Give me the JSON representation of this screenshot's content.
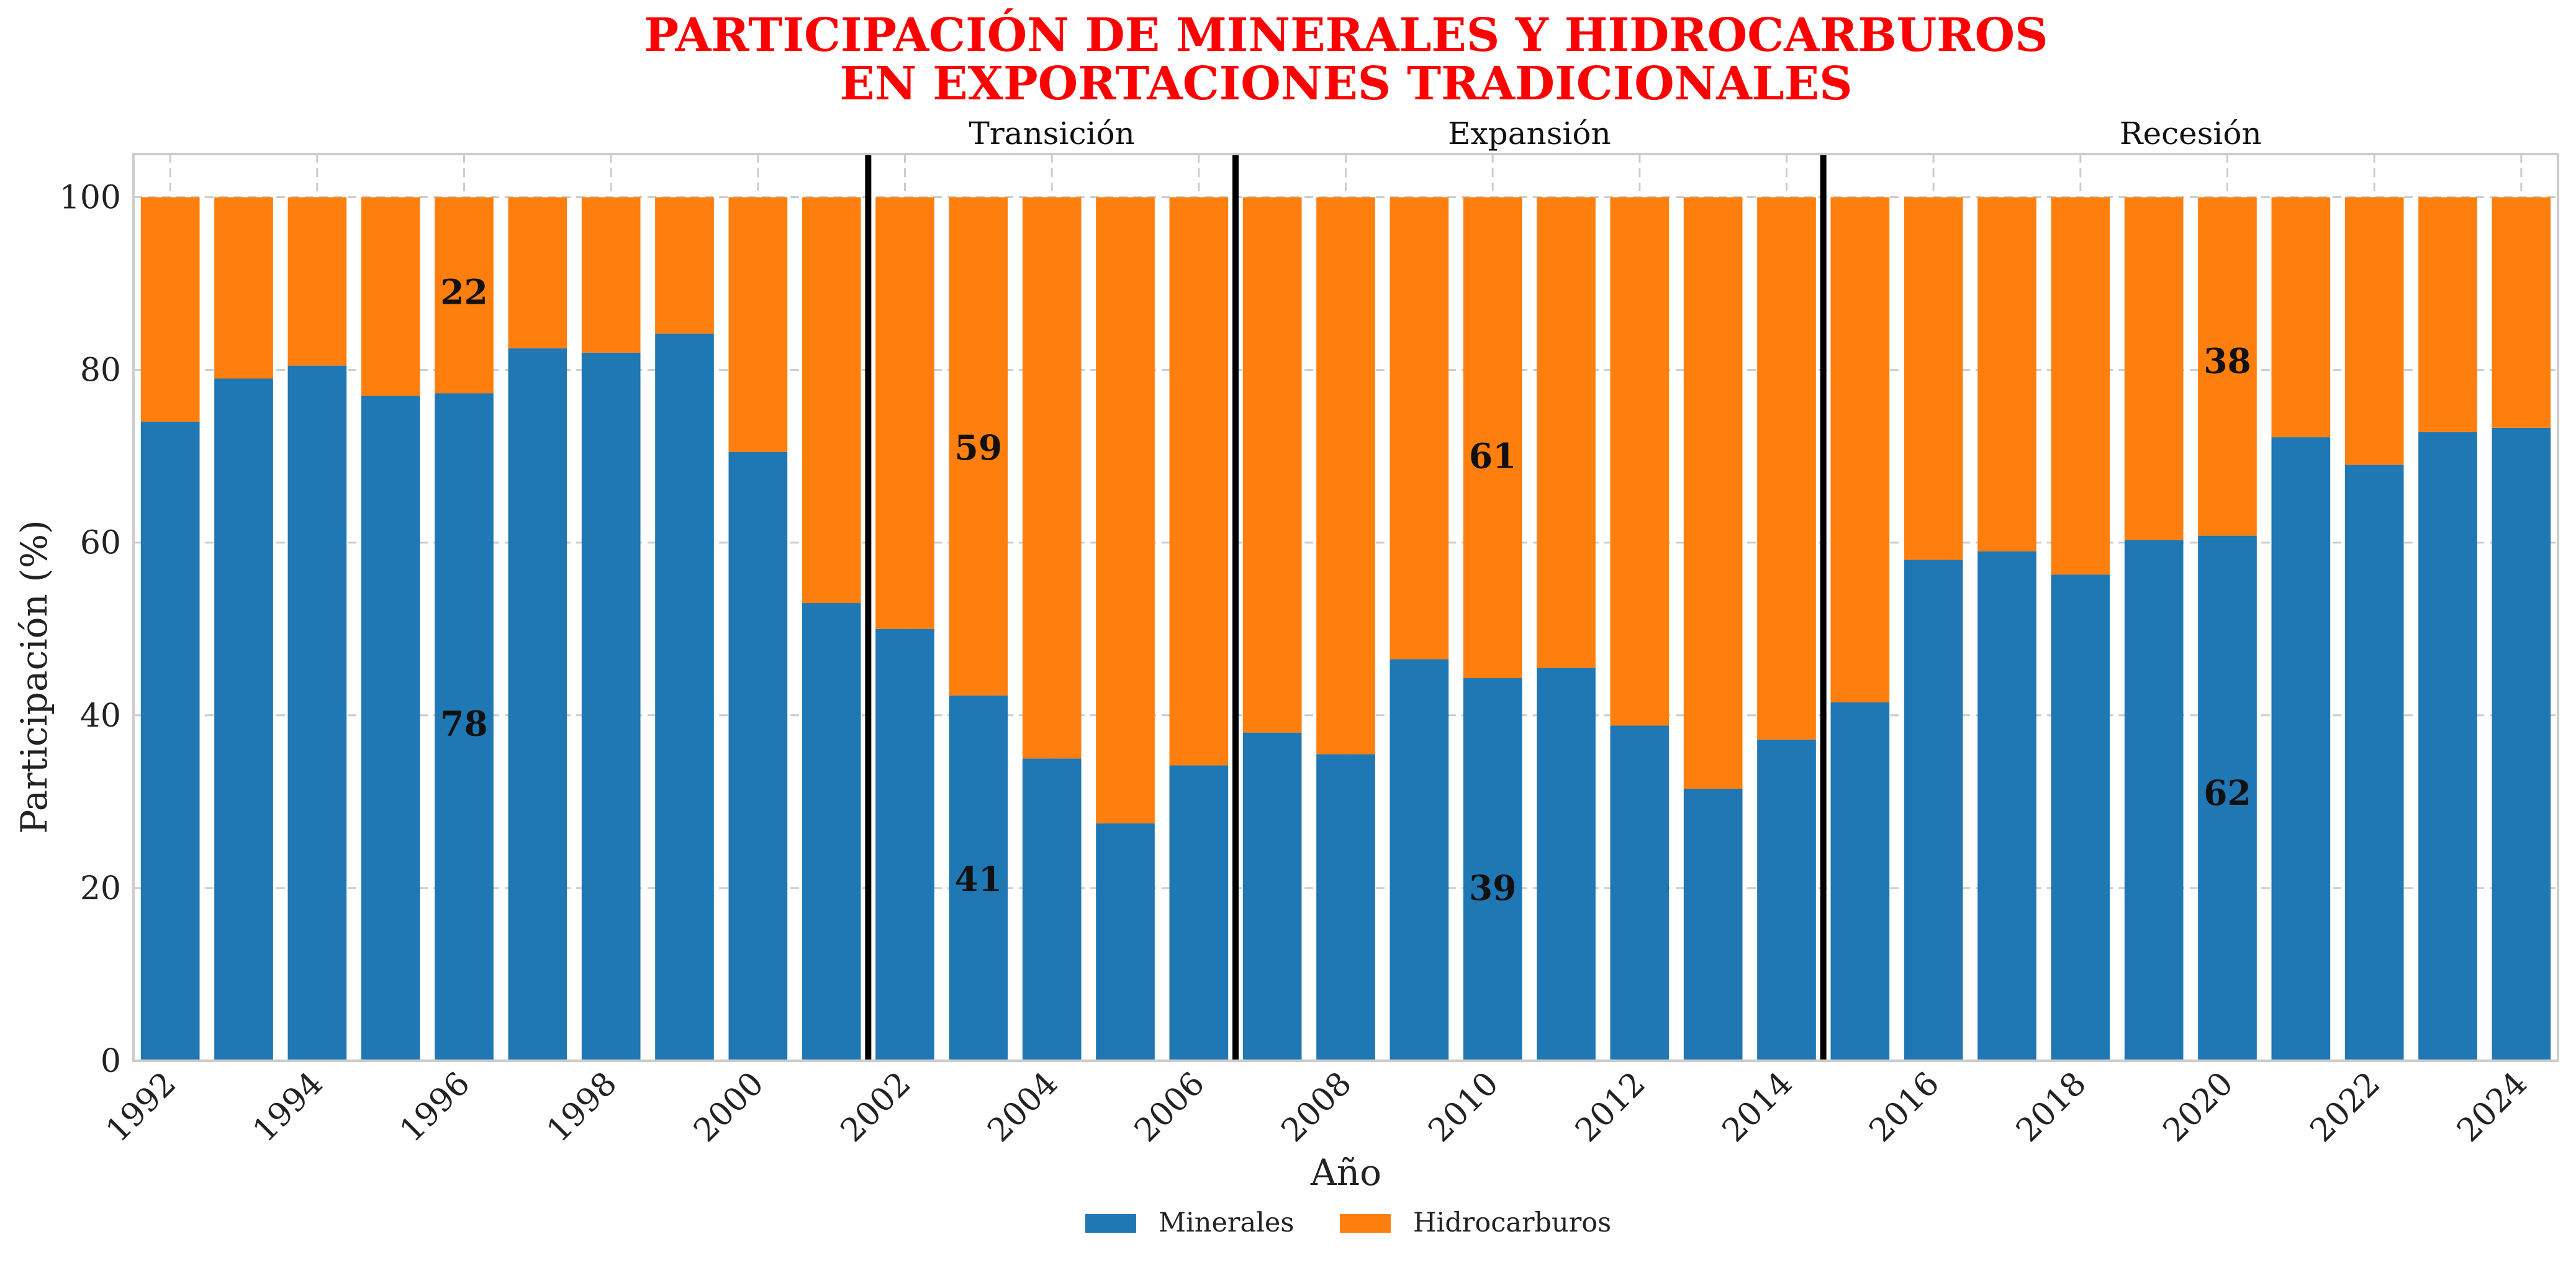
{
  "chart_data": {
    "type": "bar",
    "stacked": true,
    "title": [
      "PARTICIPACIÓN DE MINERALES Y HIDROCARBUROS",
      "EN EXPORTACIONES TRADICIONALES"
    ],
    "xlabel": "Año",
    "ylabel": "Participación (%)",
    "ylim": [
      0,
      105
    ],
    "yticks": [
      0,
      20,
      40,
      60,
      80,
      100
    ],
    "x": [
      1992,
      1993,
      1994,
      1995,
      1996,
      1997,
      1998,
      1999,
      2000,
      2001,
      2002,
      2003,
      2004,
      2005,
      2006,
      2007,
      2008,
      2009,
      2010,
      2011,
      2012,
      2013,
      2014,
      2015,
      2016,
      2017,
      2018,
      2019,
      2020,
      2021,
      2022,
      2023,
      2024
    ],
    "xtick_labels": [
      "1992",
      "1994",
      "1996",
      "1998",
      "2000",
      "2002",
      "2004",
      "2006",
      "2008",
      "2010",
      "2012",
      "2014",
      "2016",
      "2018",
      "2020",
      "2022",
      "2024"
    ],
    "grid": true,
    "legend_position": "bottom-center",
    "series": [
      {
        "name": "Minerales",
        "color": "#1f77b4",
        "values": [
          74,
          79,
          80.5,
          77,
          77.3,
          82.5,
          82,
          84.2,
          70.5,
          53,
          50,
          42.3,
          35,
          27.5,
          34.2,
          38,
          35.5,
          46.5,
          44.3,
          45.5,
          38.8,
          31.5,
          37.2,
          41.5,
          58,
          59,
          56.3,
          60.3,
          60.8,
          72.2,
          69,
          72.8,
          73.3
        ]
      },
      {
        "name": "Hidrocarburos",
        "color": "#ff7f0e",
        "values": [
          26,
          21,
          19.5,
          23,
          22.7,
          17.5,
          18,
          15.8,
          29.5,
          47,
          50,
          57.7,
          65,
          72.5,
          65.8,
          62,
          64.5,
          53.5,
          55.7,
          54.5,
          61.2,
          68.5,
          62.8,
          58.5,
          42,
          41,
          43.7,
          39.7,
          39.2,
          27.8,
          31,
          27.2,
          26.7
        ]
      }
    ],
    "dividers_between_years": [
      [
        2001,
        2002
      ],
      [
        2006,
        2007
      ],
      [
        2014,
        2015
      ]
    ],
    "periods": [
      {
        "label": "Transición",
        "start": 2002,
        "end": 2006
      },
      {
        "label": "Expansión",
        "start": 2007,
        "end": 2014
      },
      {
        "label": "Recesión",
        "start": 2015,
        "end": 2024
      }
    ],
    "annotations": [
      {
        "text": "22",
        "x": 1996,
        "y": 89
      },
      {
        "text": "78",
        "x": 1996,
        "y": 39
      },
      {
        "text": "59",
        "x": 2003,
        "y": 71
      },
      {
        "text": "41",
        "x": 2003,
        "y": 21
      },
      {
        "text": "61",
        "x": 2010,
        "y": 70
      },
      {
        "text": "39",
        "x": 2010,
        "y": 20
      },
      {
        "text": "38",
        "x": 2020,
        "y": 81
      },
      {
        "text": "62",
        "x": 2020,
        "y": 31
      }
    ]
  }
}
